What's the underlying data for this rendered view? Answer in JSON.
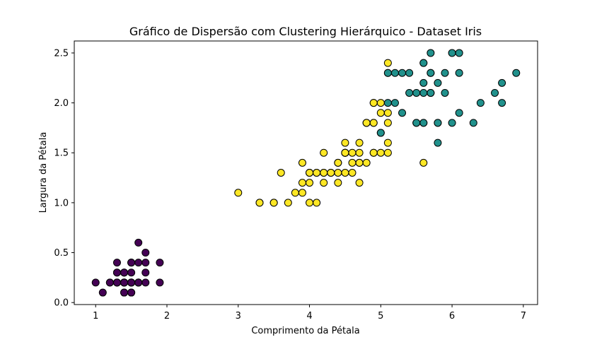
{
  "chart_data": {
    "type": "scatter",
    "title": "Gráfico de Dispersão com Clustering Hierárquico - Dataset Iris",
    "xlabel": "Comprimento da Pétala",
    "ylabel": "Largura da Pétala",
    "xlim": [
      0.7,
      7.2
    ],
    "ylim": [
      -0.02,
      2.62
    ],
    "xticks": [
      "1",
      "2",
      "3",
      "4",
      "5",
      "6",
      "7"
    ],
    "yticks": [
      "0.0",
      "0.5",
      "1.0",
      "1.5",
      "2.0",
      "2.5"
    ],
    "grid": false,
    "legend": "none",
    "series": [
      {
        "color": "#440154",
        "points": [
          [
            1.4,
            0.2
          ],
          [
            1.4,
            0.2
          ],
          [
            1.3,
            0.2
          ],
          [
            1.5,
            0.2
          ],
          [
            1.4,
            0.2
          ],
          [
            1.7,
            0.4
          ],
          [
            1.4,
            0.3
          ],
          [
            1.5,
            0.2
          ],
          [
            1.4,
            0.2
          ],
          [
            1.5,
            0.1
          ],
          [
            1.5,
            0.2
          ],
          [
            1.6,
            0.2
          ],
          [
            1.4,
            0.1
          ],
          [
            1.1,
            0.1
          ],
          [
            1.2,
            0.2
          ],
          [
            1.5,
            0.4
          ],
          [
            1.3,
            0.4
          ],
          [
            1.4,
            0.3
          ],
          [
            1.7,
            0.3
          ],
          [
            1.5,
            0.3
          ],
          [
            1.7,
            0.2
          ],
          [
            1.5,
            0.4
          ],
          [
            1.0,
            0.2
          ],
          [
            1.7,
            0.5
          ],
          [
            1.9,
            0.2
          ],
          [
            1.6,
            0.2
          ],
          [
            1.6,
            0.4
          ],
          [
            1.5,
            0.2
          ],
          [
            1.4,
            0.2
          ],
          [
            1.6,
            0.2
          ],
          [
            1.6,
            0.2
          ],
          [
            1.5,
            0.4
          ],
          [
            1.5,
            0.1
          ],
          [
            1.4,
            0.2
          ],
          [
            1.5,
            0.2
          ],
          [
            1.2,
            0.2
          ],
          [
            1.3,
            0.2
          ],
          [
            1.4,
            0.1
          ],
          [
            1.3,
            0.2
          ],
          [
            1.5,
            0.2
          ],
          [
            1.3,
            0.3
          ],
          [
            1.3,
            0.3
          ],
          [
            1.3,
            0.2
          ],
          [
            1.6,
            0.6
          ],
          [
            1.9,
            0.4
          ],
          [
            1.4,
            0.3
          ],
          [
            1.6,
            0.2
          ],
          [
            1.4,
            0.2
          ],
          [
            1.5,
            0.2
          ],
          [
            1.4,
            0.2
          ]
        ]
      },
      {
        "color": "#fde725",
        "points": [
          [
            4.7,
            1.4
          ],
          [
            4.5,
            1.5
          ],
          [
            4.9,
            1.5
          ],
          [
            4.0,
            1.3
          ],
          [
            4.6,
            1.5
          ],
          [
            4.5,
            1.3
          ],
          [
            4.7,
            1.6
          ],
          [
            3.3,
            1.0
          ],
          [
            4.6,
            1.3
          ],
          [
            3.9,
            1.4
          ],
          [
            3.5,
            1.0
          ],
          [
            4.2,
            1.5
          ],
          [
            4.0,
            1.0
          ],
          [
            4.7,
            1.4
          ],
          [
            3.6,
            1.3
          ],
          [
            4.4,
            1.4
          ],
          [
            4.5,
            1.5
          ],
          [
            4.1,
            1.0
          ],
          [
            4.5,
            1.5
          ],
          [
            3.9,
            1.1
          ],
          [
            4.8,
            1.8
          ],
          [
            4.0,
            1.3
          ],
          [
            4.9,
            1.5
          ],
          [
            4.7,
            1.2
          ],
          [
            4.3,
            1.3
          ],
          [
            4.4,
            1.4
          ],
          [
            4.8,
            1.4
          ],
          [
            5.0,
            1.7
          ],
          [
            4.5,
            1.5
          ],
          [
            3.5,
            1.0
          ],
          [
            3.8,
            1.1
          ],
          [
            3.7,
            1.0
          ],
          [
            3.9,
            1.2
          ],
          [
            5.1,
            1.6
          ],
          [
            4.5,
            1.5
          ],
          [
            4.5,
            1.6
          ],
          [
            4.7,
            1.5
          ],
          [
            4.4,
            1.3
          ],
          [
            4.1,
            1.3
          ],
          [
            4.0,
            1.3
          ],
          [
            4.4,
            1.2
          ],
          [
            4.6,
            1.4
          ],
          [
            4.0,
            1.2
          ],
          [
            3.3,
            1.0
          ],
          [
            4.2,
            1.3
          ],
          [
            4.2,
            1.2
          ],
          [
            4.2,
            1.3
          ],
          [
            4.3,
            1.3
          ],
          [
            3.0,
            1.1
          ],
          [
            4.1,
            1.3
          ],
          [
            5.1,
            2.4
          ],
          [
            5.0,
            2.0
          ],
          [
            4.9,
            1.8
          ],
          [
            4.8,
            1.8
          ],
          [
            5.1,
            1.9
          ],
          [
            4.9,
            2.0
          ],
          [
            5.6,
            1.4
          ],
          [
            5.0,
            1.5
          ],
          [
            5.1,
            1.8
          ],
          [
            4.9,
            1.8
          ],
          [
            4.8,
            1.8
          ],
          [
            5.0,
            1.9
          ],
          [
            5.1,
            2.3
          ],
          [
            5.1,
            1.5
          ],
          [
            4.9,
            2.0
          ]
        ]
      },
      {
        "color": "#21918c",
        "points": [
          [
            6.0,
            2.5
          ],
          [
            5.9,
            2.1
          ],
          [
            5.6,
            1.8
          ],
          [
            5.8,
            2.2
          ],
          [
            6.6,
            2.1
          ],
          [
            6.3,
            1.8
          ],
          [
            5.8,
            1.8
          ],
          [
            6.1,
            2.5
          ],
          [
            5.3,
            1.9
          ],
          [
            5.5,
            2.1
          ],
          [
            5.2,
            2.0
          ],
          [
            5.3,
            2.3
          ],
          [
            5.5,
            1.8
          ],
          [
            6.7,
            2.2
          ],
          [
            6.9,
            2.3
          ],
          [
            5.7,
            2.3
          ],
          [
            6.7,
            2.0
          ],
          [
            5.7,
            2.1
          ],
          [
            6.0,
            1.8
          ],
          [
            5.8,
            1.6
          ],
          [
            6.1,
            1.9
          ],
          [
            6.4,
            2.0
          ],
          [
            5.6,
            2.2
          ],
          [
            6.1,
            2.3
          ],
          [
            5.6,
            2.4
          ],
          [
            5.5,
            1.8
          ],
          [
            5.4,
            2.1
          ],
          [
            5.6,
            2.4
          ],
          [
            5.1,
            2.3
          ],
          [
            5.9,
            2.3
          ],
          [
            5.7,
            2.5
          ],
          [
            5.2,
            2.3
          ],
          [
            5.4,
            2.3
          ],
          [
            5.1,
            2.0
          ],
          [
            5.6,
            2.1
          ],
          [
            5.6,
            1.8
          ],
          [
            5.8,
            1.8
          ],
          [
            5.7,
            2.1
          ],
          [
            5.0,
            1.7
          ],
          [
            5.7,
            2.3
          ]
        ]
      }
    ]
  }
}
